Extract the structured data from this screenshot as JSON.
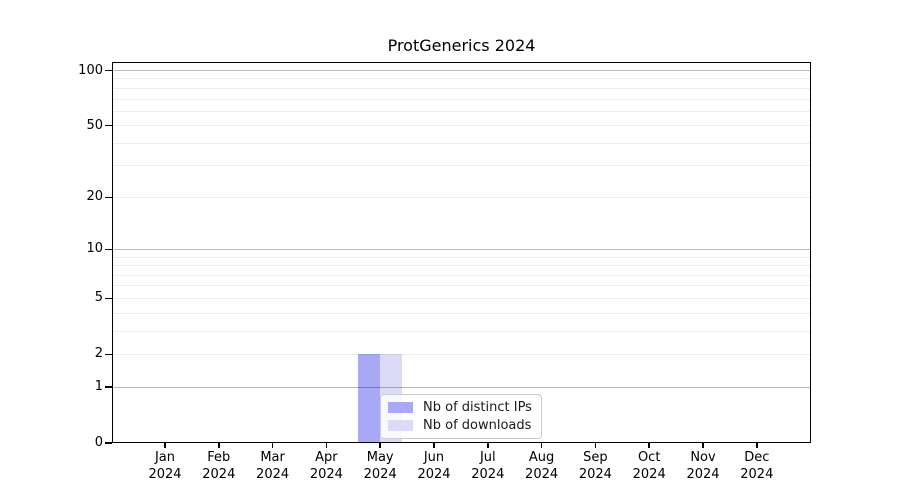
{
  "chart_data": {
    "type": "bar",
    "title": "ProtGenerics 2024",
    "categories": [
      "Jan 2024",
      "Feb 2024",
      "Mar 2024",
      "Apr 2024",
      "May 2024",
      "Jun 2024",
      "Jul 2024",
      "Aug 2024",
      "Sep 2024",
      "Oct 2024",
      "Nov 2024",
      "Dec 2024"
    ],
    "series": [
      {
        "name": "Nb of distinct IPs",
        "color": "#a8a8f5",
        "values": [
          0,
          0,
          0,
          0,
          2,
          0,
          0,
          0,
          0,
          0,
          0,
          0
        ]
      },
      {
        "name": "Nb of downloads",
        "color": "#dbdbf8",
        "values": [
          0,
          0,
          0,
          0,
          2,
          0,
          0,
          0,
          0,
          0,
          0,
          0
        ]
      }
    ],
    "xlabel": "",
    "ylabel": "",
    "y_scale": "log1p",
    "y_ticks": [
      0,
      1,
      2,
      5,
      10,
      20,
      50,
      100
    ],
    "y_major_gridlines": [
      1,
      10,
      100
    ],
    "y_minor_gridlines": [
      2,
      3,
      4,
      5,
      6,
      7,
      8,
      9,
      20,
      30,
      40,
      50,
      60,
      70,
      80,
      90
    ],
    "ylim": [
      0,
      117
    ],
    "grid": "horizontal",
    "legend_position": "inside-lower-center",
    "colors": {
      "bar_distinct_ips": "#a8a8f5",
      "bar_downloads": "#dbdbf8",
      "major_grid": "rgba(0,0,0,0.28)",
      "minor_grid": "rgba(0,0,0,0.07)",
      "axis": "#000000",
      "text": "#000000",
      "legend_border": "#cccccc",
      "legend_bg": "rgba(255,255,255,0.8)"
    }
  }
}
